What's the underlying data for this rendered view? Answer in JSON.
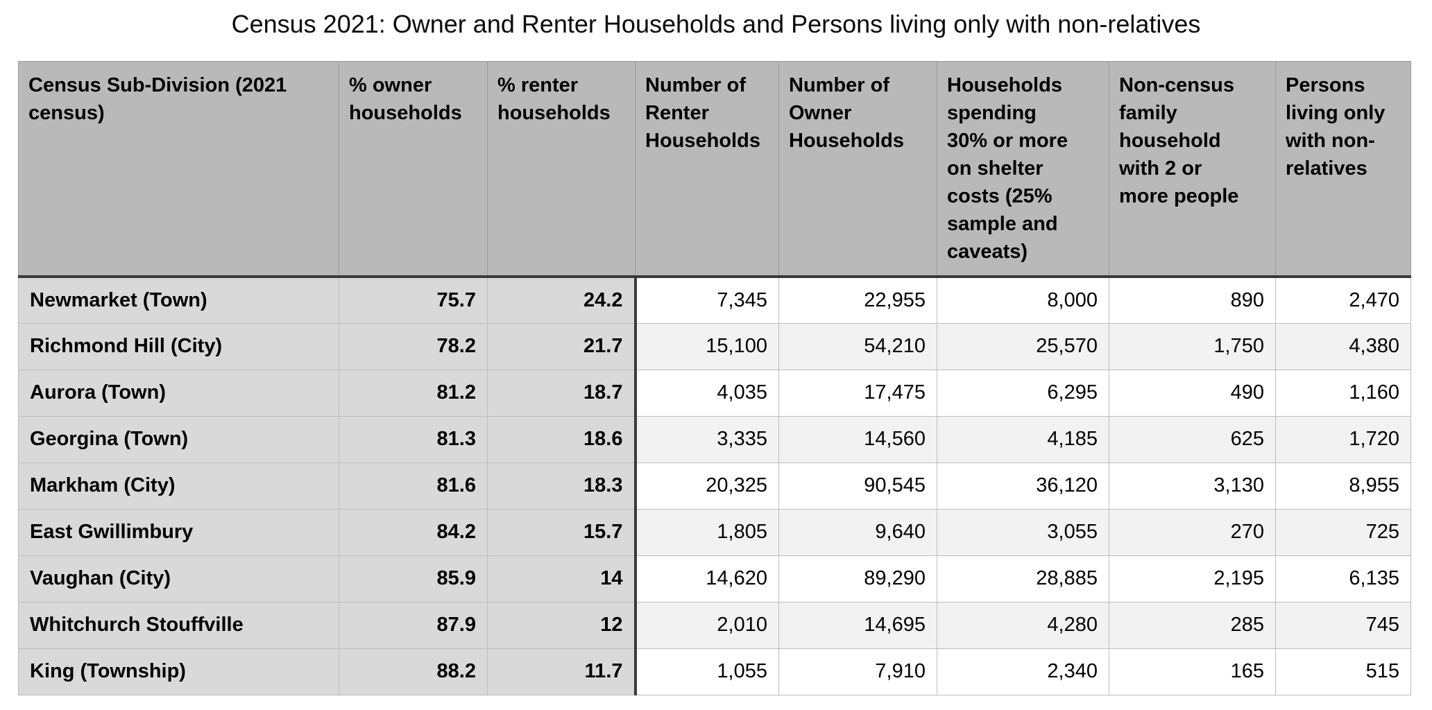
{
  "title": "Census 2021: Owner and Renter Households and Persons living only with non-relatives",
  "colors": {
    "header_bg": "#b9b9b9",
    "label_band_bg": "#d9d9d9",
    "row_alt_bg": "#f2f2f2",
    "row_bg": "#ffffff",
    "thick_border": "#3a3a3a",
    "thin_border_header": "#9b9b9b",
    "thin_border_body": "#bdbdbd",
    "text": "#000000"
  },
  "chart_data": {
    "type": "table",
    "title": "Census 2021: Owner and Renter Households and Persons living only with non-relatives",
    "columns": [
      {
        "key": "subdivision",
        "label": "Census Sub-Division (2021\ncensus)",
        "align": "left"
      },
      {
        "key": "pct-owner",
        "label": "% owner\nhouseholds",
        "align": "right"
      },
      {
        "key": "pct-renter",
        "label": "% renter\nhouseholds",
        "align": "right"
      },
      {
        "key": "renter-households",
        "label": "Number of\nRenter\nHouseholds",
        "align": "right"
      },
      {
        "key": "owner-households",
        "label": "Number of\nOwner\nHouseholds",
        "align": "right"
      },
      {
        "key": "shelter-cost-30",
        "label": "Households\nspending\n30% or more\non shelter\ncosts (25%\nsample and\ncaveats)",
        "align": "right"
      },
      {
        "key": "non-census-family",
        "label": "Non-census\nfamily\nhousehold\nwith 2 or\nmore people",
        "align": "right"
      },
      {
        "key": "non-relatives",
        "label": "Persons\nliving only\nwith non-\nrelatives",
        "align": "right"
      }
    ],
    "rows": [
      [
        "Newmarket (Town)",
        "75.7",
        "24.2",
        "7,345",
        "22,955",
        "8,000",
        "890",
        "2,470"
      ],
      [
        "Richmond Hill (City)",
        "78.2",
        "21.7",
        "15,100",
        "54,210",
        "25,570",
        "1,750",
        "4,380"
      ],
      [
        "Aurora (Town)",
        "81.2",
        "18.7",
        "4,035",
        "17,475",
        "6,295",
        "490",
        "1,160"
      ],
      [
        "Georgina (Town)",
        "81.3",
        "18.6",
        "3,335",
        "14,560",
        "4,185",
        "625",
        "1,720"
      ],
      [
        "Markham (City)",
        "81.6",
        "18.3",
        "20,325",
        "90,545",
        "36,120",
        "3,130",
        "8,955"
      ],
      [
        "East Gwillimbury",
        "84.2",
        "15.7",
        "1,805",
        "9,640",
        "3,055",
        "270",
        "725"
      ],
      [
        "Vaughan (City)",
        "85.9",
        "14",
        "14,620",
        "89,290",
        "28,885",
        "2,195",
        "6,135"
      ],
      [
        "Whitchurch Stouffville",
        "87.9",
        "12",
        "2,010",
        "14,695",
        "4,280",
        "285",
        "745"
      ],
      [
        "King (Township)",
        "88.2",
        "11.7",
        "1,055",
        "7,910",
        "2,340",
        "165",
        "515"
      ]
    ]
  }
}
